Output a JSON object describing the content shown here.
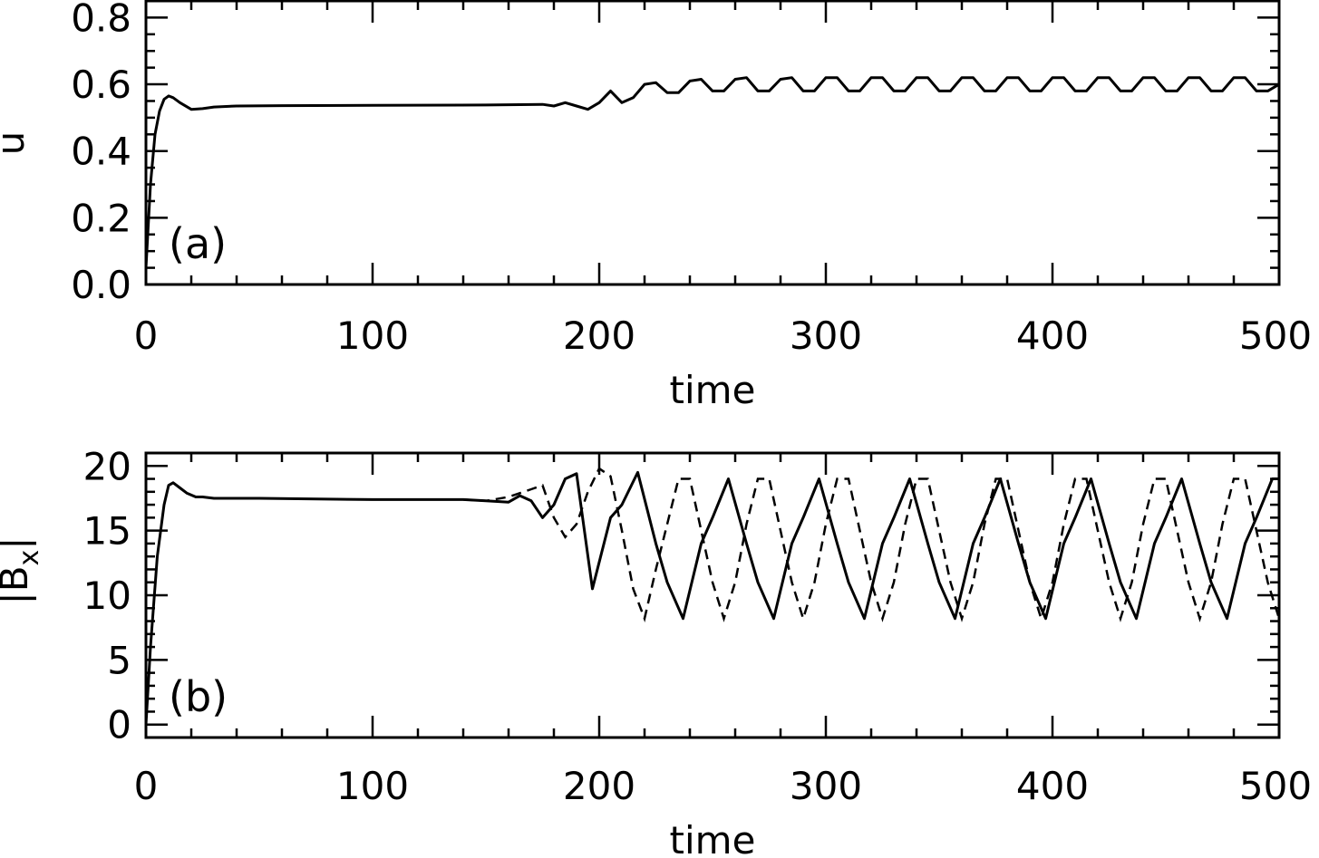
{
  "chart_data": [
    {
      "type": "line",
      "panel_label": "(a)",
      "xlabel": "time",
      "ylabel": "u",
      "xlim": [
        0,
        500
      ],
      "ylim": [
        0,
        0.85
      ],
      "x_ticks": [
        "0",
        "100",
        "200",
        "300",
        "400",
        "500"
      ],
      "y_ticks": [
        "0.0",
        "0.2",
        "0.4",
        "0.6",
        "0.8"
      ],
      "series": [
        {
          "style": "solid",
          "x": [
            0,
            2,
            4,
            6,
            8,
            10,
            12,
            15,
            20,
            25,
            30,
            40,
            60,
            100,
            150,
            175,
            180,
            185,
            190,
            195,
            200,
            205,
            210,
            215,
            220,
            225,
            230,
            235,
            240,
            245,
            250,
            255,
            260,
            265,
            270,
            275,
            280,
            285,
            290,
            295,
            300,
            305,
            310,
            315,
            320,
            325,
            330,
            335,
            340,
            345,
            350,
            355,
            360,
            365,
            370,
            375,
            380,
            385,
            390,
            395,
            400,
            405,
            410,
            415,
            420,
            425,
            430,
            435,
            440,
            445,
            450,
            455,
            460,
            465,
            470,
            475,
            480,
            485,
            490,
            495,
            500
          ],
          "y": [
            0.05,
            0.3,
            0.45,
            0.52,
            0.555,
            0.565,
            0.56,
            0.545,
            0.525,
            0.527,
            0.532,
            0.535,
            0.536,
            0.537,
            0.538,
            0.54,
            0.535,
            0.545,
            0.535,
            0.525,
            0.545,
            0.58,
            0.545,
            0.56,
            0.6,
            0.605,
            0.575,
            0.575,
            0.61,
            0.615,
            0.58,
            0.58,
            0.615,
            0.62,
            0.58,
            0.58,
            0.615,
            0.62,
            0.58,
            0.58,
            0.62,
            0.62,
            0.58,
            0.58,
            0.62,
            0.62,
            0.58,
            0.58,
            0.62,
            0.62,
            0.58,
            0.58,
            0.62,
            0.62,
            0.58,
            0.58,
            0.62,
            0.62,
            0.58,
            0.58,
            0.62,
            0.62,
            0.58,
            0.58,
            0.62,
            0.62,
            0.58,
            0.58,
            0.62,
            0.62,
            0.58,
            0.58,
            0.62,
            0.62,
            0.58,
            0.58,
            0.62,
            0.62,
            0.58,
            0.58,
            0.6
          ]
        }
      ]
    },
    {
      "type": "line",
      "panel_label": "(b)",
      "xlabel": "time",
      "ylabel": "|B",
      "ylabel_sub": "x",
      "ylabel_end": "|",
      "xlim": [
        0,
        500
      ],
      "ylim": [
        -1,
        21
      ],
      "x_ticks": [
        "0",
        "100",
        "200",
        "300",
        "400",
        "500"
      ],
      "y_ticks": [
        "0",
        "5",
        "10",
        "15",
        "20"
      ],
      "series": [
        {
          "style": "solid",
          "x": [
            0,
            2,
            5,
            8,
            10,
            12,
            15,
            18,
            22,
            25,
            30,
            50,
            100,
            140,
            150,
            160,
            165,
            170,
            175,
            180,
            185,
            190,
            197,
            205,
            210,
            217,
            225,
            230,
            237,
            245,
            250,
            257,
            265,
            270,
            277,
            285,
            290,
            297,
            305,
            310,
            317,
            325,
            330,
            337,
            345,
            350,
            357,
            365,
            370,
            377,
            385,
            390,
            397,
            405,
            410,
            417,
            425,
            430,
            437,
            445,
            450,
            457,
            465,
            470,
            477,
            485,
            490,
            497,
            500
          ],
          "y": [
            0,
            6,
            13,
            17,
            18.5,
            18.7,
            18.3,
            17.9,
            17.6,
            17.6,
            17.5,
            17.5,
            17.4,
            17.4,
            17.3,
            17.2,
            17.7,
            17.3,
            16,
            17,
            19,
            19.4,
            10.5,
            16,
            17,
            19.5,
            14,
            11,
            8.2,
            14,
            16,
            19,
            14,
            11,
            8.2,
            14,
            16,
            19,
            14,
            11,
            8.2,
            14,
            16,
            19,
            14,
            11,
            8.2,
            14,
            16,
            19,
            14,
            11,
            8.2,
            14,
            16,
            19,
            14,
            11,
            8.2,
            14,
            16,
            19,
            14,
            11,
            8.2,
            14,
            16,
            19,
            19
          ]
        },
        {
          "style": "dashed",
          "x": [
            140,
            150,
            160,
            170,
            175,
            180,
            185,
            190,
            195,
            200,
            205,
            210,
            215,
            220,
            225,
            230,
            235,
            240,
            245,
            250,
            255,
            260,
            265,
            270,
            275,
            280,
            285,
            290,
            295,
            300,
            305,
            310,
            315,
            320,
            325,
            330,
            335,
            340,
            345,
            350,
            355,
            360,
            365,
            370,
            375,
            380,
            385,
            390,
            395,
            400,
            405,
            410,
            415,
            420,
            425,
            430,
            435,
            440,
            445,
            450,
            455,
            460,
            465,
            470,
            475,
            480,
            485,
            490,
            495,
            500
          ],
          "y": [
            17.4,
            17.3,
            17.6,
            18.2,
            18.5,
            16,
            14.5,
            15.5,
            18,
            19.8,
            19.2,
            15,
            10.5,
            8.2,
            12,
            15.5,
            19,
            19,
            15,
            11,
            8.2,
            11,
            15.5,
            19,
            19,
            15,
            11,
            8.2,
            11,
            15.5,
            19,
            19,
            15,
            11,
            8.2,
            11,
            15.5,
            19,
            19,
            15,
            11,
            8.2,
            11,
            15.5,
            19,
            19,
            15,
            11,
            8.2,
            11,
            15.5,
            19,
            19,
            15,
            11,
            8.2,
            11,
            15.5,
            19,
            19,
            15,
            11,
            8.2,
            11,
            15.5,
            19,
            19,
            15,
            11,
            8.2
          ]
        }
      ]
    }
  ]
}
